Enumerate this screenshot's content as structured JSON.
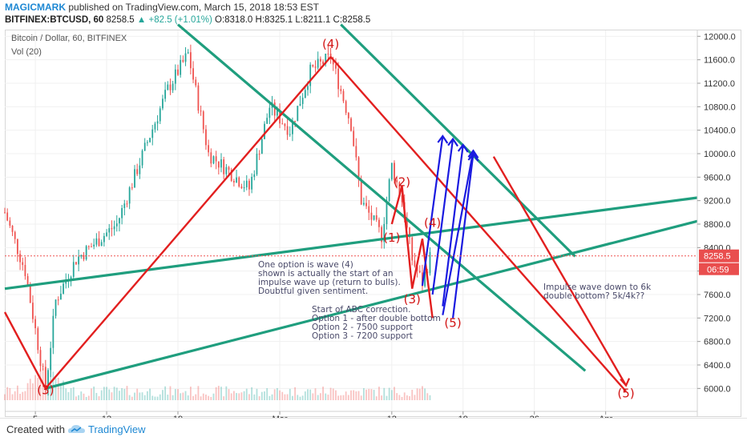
{
  "header": {
    "author": "MAGICMARK",
    "published": "published on TradingView.com, March 15, 2018 18:53 EST",
    "symbol": "BITFINEX:BTCUSD, 60",
    "last": "8258.5",
    "arrow": "▲",
    "change": "+82.5 (+1.01%)",
    "open": "O:8318.0",
    "high": "H:8325.1",
    "low": "L:8211.1",
    "close": "C:8258.5"
  },
  "legend": {
    "title": "Bitcoin / Dollar, 60, BITFINEX",
    "volume": "Vol (20)"
  },
  "price_label": "8258.5",
  "countdown_label": "06:59",
  "annotations": {
    "note1": [
      "One option is wave (4)",
      "shown is actually the start of an",
      "impulse wave up (return to bulls).",
      "Doubtful given sentiment."
    ],
    "note2": [
      "Start of ABC correction.",
      "Option 1 - after double bottom",
      "Option 2 - 7500 support",
      "Option 3 - 7200 support"
    ],
    "note3": [
      "Impulse wave down to 6k",
      "double bottom? 5k/4k??"
    ]
  },
  "footer": {
    "created_with": "Created with",
    "brand": "TradingView"
  },
  "colors": {
    "up": "#26a69a",
    "down": "#ef5350",
    "trendline": "#1f9e7e",
    "wave_line": "#e21f1f",
    "projection": "#1a1ae0",
    "price_label_bg": "#e94e4e"
  },
  "chart_data": {
    "type": "candlestick",
    "title": "Bitcoin / Dollar, 60, BITFINEX",
    "ylim": [
      5800,
      12100
    ],
    "y_ticks": [
      12000,
      11600,
      11200,
      10800,
      10400,
      10000,
      9600,
      9200,
      8800,
      8400,
      8000,
      7600,
      7200,
      6800,
      6400,
      6000
    ],
    "y_tick_labels": [
      "12000.0",
      "11600.0",
      "11200.0",
      "10800.0",
      "10400.0",
      "10000.0",
      "9600.0",
      "9200.0",
      "8800.0",
      "8400.0",
      "8000.0",
      "7600.0",
      "7200.0",
      "6800.0",
      "6400.0",
      "6000.0"
    ],
    "xlim": [
      "2018-02-02",
      "2018-04-11"
    ],
    "x_ticks": [
      {
        "date": "2018-02-05",
        "label": "5"
      },
      {
        "date": "2018-02-12",
        "label": "12"
      },
      {
        "date": "2018-02-19",
        "label": "19"
      },
      {
        "date": "2018-03-01",
        "label": "Mar"
      },
      {
        "date": "2018-03-12",
        "label": "12"
      },
      {
        "date": "2018-03-19",
        "label": "19"
      },
      {
        "date": "2018-03-26",
        "label": "26"
      },
      {
        "date": "2018-04-02",
        "label": "Apr"
      }
    ],
    "price_path": [
      {
        "date": "2018-02-02",
        "price": 9000
      },
      {
        "date": "2018-02-04",
        "price": 8000
      },
      {
        "date": "2018-02-06",
        "price": 6000
      },
      {
        "date": "2018-02-07",
        "price": 7500
      },
      {
        "date": "2018-02-09",
        "price": 8200
      },
      {
        "date": "2018-02-11",
        "price": 8500
      },
      {
        "date": "2018-02-13",
        "price": 8800
      },
      {
        "date": "2018-02-16",
        "price": 10200
      },
      {
        "date": "2018-02-18",
        "price": 11100
      },
      {
        "date": "2018-02-20",
        "price": 11700
      },
      {
        "date": "2018-02-22",
        "price": 10000
      },
      {
        "date": "2018-02-24",
        "price": 9700
      },
      {
        "date": "2018-02-26",
        "price": 9400
      },
      {
        "date": "2018-02-28",
        "price": 10800
      },
      {
        "date": "2018-03-02",
        "price": 10400
      },
      {
        "date": "2018-03-04",
        "price": 11400
      },
      {
        "date": "2018-03-06",
        "price": 11650
      },
      {
        "date": "2018-03-08",
        "price": 10500
      },
      {
        "date": "2018-03-09",
        "price": 9200
      },
      {
        "date": "2018-03-11",
        "price": 8600
      },
      {
        "date": "2018-03-12",
        "price": 9800
      },
      {
        "date": "2018-03-13",
        "price": 9200
      },
      {
        "date": "2018-03-14",
        "price": 8200
      },
      {
        "date": "2018-03-15",
        "price": 7800
      },
      {
        "date": "2018-03-15.8",
        "price": 8258.5
      }
    ],
    "current_price": 8258.5,
    "trendlines": [
      {
        "from": [
          "2018-02-19",
          12200
        ],
        "to": [
          "2018-03-31",
          6300
        ]
      },
      {
        "from": [
          "2018-03-07",
          12200
        ],
        "to": [
          "2018-03-30",
          8250
        ]
      },
      {
        "from": [
          "2018-02-02",
          7700
        ],
        "to": [
          "2018-04-11",
          9250
        ]
      },
      {
        "from": [
          "2018-02-06",
          6000
        ],
        "to": [
          "2018-04-11",
          8850
        ]
      }
    ],
    "wave_labels": [
      {
        "label": "(3)",
        "date": "2018-02-06",
        "price": 5900
      },
      {
        "label": "(4)",
        "date": "2018-03-06",
        "price": 11800
      },
      {
        "label": "(1)",
        "date": "2018-03-12",
        "price": 8500
      },
      {
        "label": "(2)",
        "date": "2018-03-13",
        "price": 9450
      },
      {
        "label": "(3)",
        "date": "2018-03-14",
        "price": 7450
      },
      {
        "label": "(4)",
        "date": "2018-03-16",
        "price": 8750
      },
      {
        "label": "(5)",
        "date": "2018-03-18",
        "price": 7050
      },
      {
        "label": "(5)",
        "date": "2018-04-04",
        "price": 5850
      }
    ]
  }
}
